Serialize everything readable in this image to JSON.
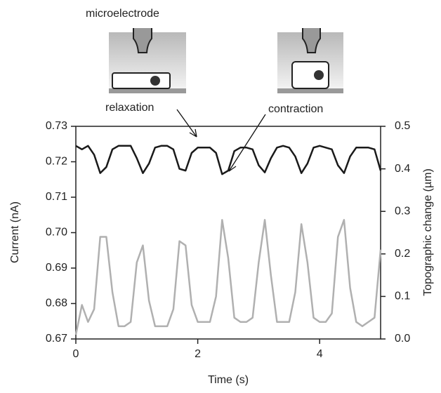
{
  "chart_data": {
    "type": "line",
    "annotations": [
      "microelectrode",
      "relaxation",
      "contraction"
    ],
    "xlabel": "Time (s)",
    "ylabel": "Current (nA)",
    "y2label": "Topographic change (µm)",
    "xlim": [
      0,
      5
    ],
    "xticks": [
      0,
      2,
      4
    ],
    "ylim": [
      0.67,
      0.73
    ],
    "yticks": [
      {
        "value": 0.67,
        "label": "0.67"
      },
      {
        "value": 0.68,
        "label": "0.68"
      },
      {
        "value": 0.69,
        "label": "0.69"
      },
      {
        "value": 0.7,
        "label": "0.70"
      },
      {
        "value": 0.71,
        "label": "0.71"
      },
      {
        "value": 0.72,
        "label": "0.72"
      },
      {
        "value": 0.73,
        "label": "0.73"
      }
    ],
    "y2lim": [
      0,
      0.5
    ],
    "y2ticks": [
      {
        "value": 0,
        "label": "0.0"
      },
      0.1,
      0.2,
      0.3,
      0.4,
      0.5
    ],
    "x": [
      0,
      0.1,
      0.2,
      0.3,
      0.4,
      0.5,
      0.6,
      0.7,
      0.8,
      0.9,
      1,
      1.1,
      1.2,
      1.3,
      1.4,
      1.5,
      1.6,
      1.7,
      1.8,
      1.9,
      2,
      2.1,
      2.2,
      2.3,
      2.4,
      2.5,
      2.6,
      2.7,
      2.8,
      2.9,
      3,
      3.1,
      3.2,
      3.3,
      3.4,
      3.5,
      3.6,
      3.7,
      3.8,
      3.9,
      4,
      4.1,
      4.2,
      4.3,
      4.4,
      4.5,
      4.6,
      4.7,
      4.8,
      4.9,
      5
    ],
    "series": [
      {
        "color": "#1a1a1a",
        "axis": "y",
        "values": [
          0.7245,
          0.7235,
          0.7245,
          0.722,
          0.7168,
          0.7185,
          0.7235,
          0.7245,
          0.7245,
          0.7245,
          0.721,
          0.7168,
          0.7195,
          0.724,
          0.7245,
          0.7245,
          0.7235,
          0.718,
          0.7175,
          0.7225,
          0.724,
          0.724,
          0.724,
          0.7225,
          0.7165,
          0.7175,
          0.723,
          0.724,
          0.724,
          0.7235,
          0.719,
          0.717,
          0.721,
          0.724,
          0.7245,
          0.724,
          0.7215,
          0.7168,
          0.7195,
          0.724,
          0.7245,
          0.724,
          0.7235,
          0.719,
          0.7168,
          0.7215,
          0.724,
          0.724,
          0.724,
          0.7235,
          0.7175
        ]
      },
      {
        "color": "#b0b0b0",
        "axis": "y2",
        "values": [
          0.01,
          0.08,
          0.04,
          0.07,
          0.24,
          0.24,
          0.11,
          0.03,
          0.03,
          0.04,
          0.18,
          0.22,
          0.09,
          0.03,
          0.03,
          0.03,
          0.07,
          0.23,
          0.22,
          0.08,
          0.04,
          0.04,
          0.04,
          0.1,
          0.28,
          0.19,
          0.05,
          0.04,
          0.04,
          0.05,
          0.18,
          0.28,
          0.15,
          0.04,
          0.04,
          0.04,
          0.11,
          0.27,
          0.18,
          0.05,
          0.04,
          0.04,
          0.06,
          0.24,
          0.28,
          0.12,
          0.04,
          0.03,
          0.04,
          0.05,
          0.21
        ]
      }
    ]
  }
}
